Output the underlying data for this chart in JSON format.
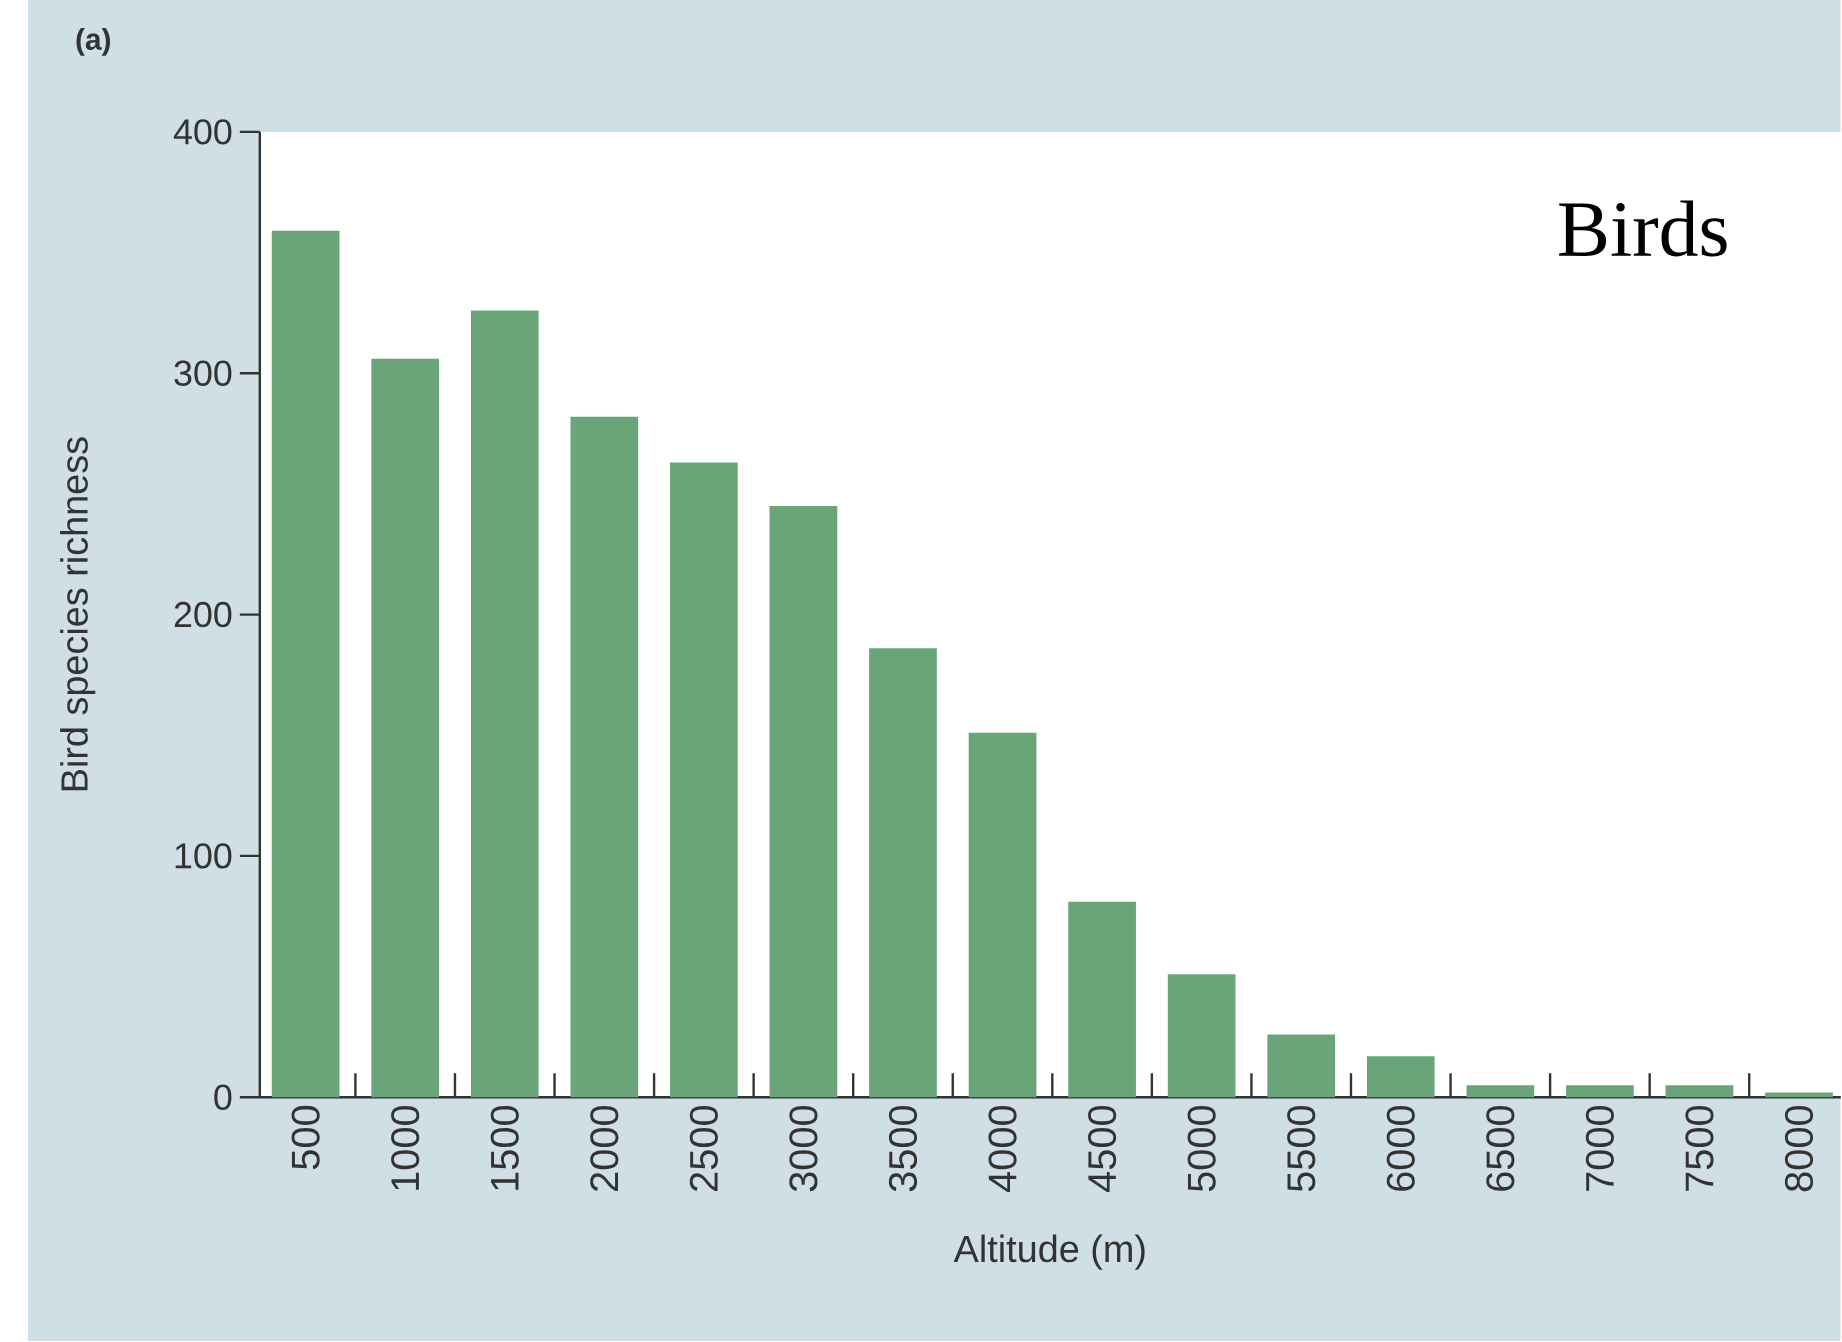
{
  "chart_data": {
    "type": "bar",
    "xlabel": "Altitude (m)",
    "ylabel": "Bird species richness",
    "annotations": [
      "(a)",
      "Birds"
    ],
    "categories": [
      "500",
      "1000",
      "1500",
      "2000",
      "2500",
      "3000",
      "3500",
      "4000",
      "4500",
      "5000",
      "5500",
      "6000",
      "6500",
      "7000",
      "7500",
      "8000"
    ],
    "values": [
      359,
      306,
      326,
      282,
      263,
      245,
      186,
      151,
      81,
      51,
      26,
      17,
      5,
      5,
      5,
      2
    ],
    "color": "#6aa57a",
    "ylim": [
      0,
      400
    ],
    "yticks": [
      0,
      100,
      200,
      300,
      400
    ]
  }
}
